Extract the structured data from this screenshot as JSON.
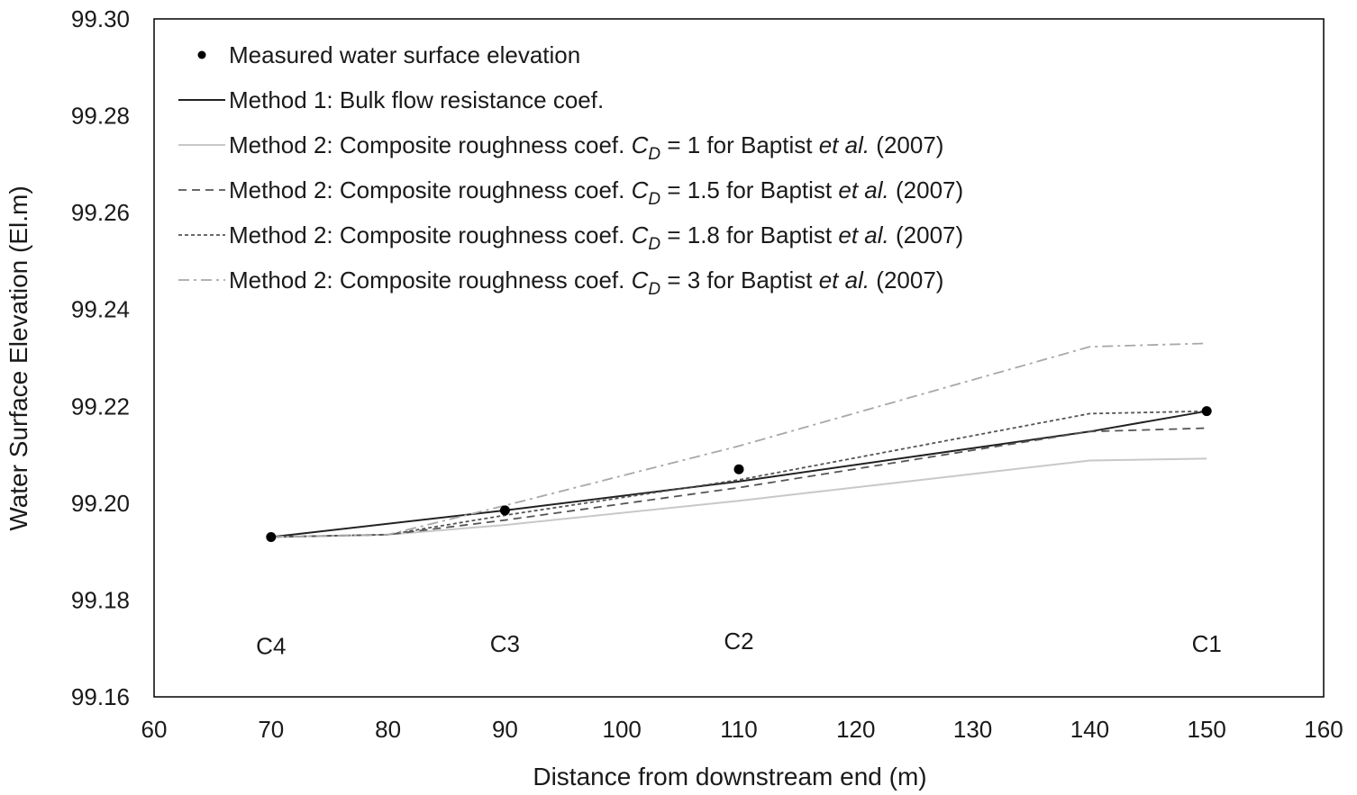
{
  "chart_data": {
    "type": "line",
    "xlabel": "Distance from downstream end (m)",
    "ylabel": "Water Surface Elevation (El.m)",
    "xlim": [
      60,
      160
    ],
    "ylim": [
      99.16,
      99.3
    ],
    "x_ticks": [
      "60",
      "70",
      "80",
      "90",
      "100",
      "110",
      "120",
      "130",
      "140",
      "150",
      "160"
    ],
    "y_ticks": [
      "99.16",
      "99.18",
      "99.20",
      "99.22",
      "99.24",
      "99.26",
      "99.28",
      "99.30"
    ],
    "grid": false,
    "legend_position": "top-left",
    "measured": {
      "name": "Measured water surface elevation",
      "points": [
        {
          "x": 70,
          "y": 99.193
        },
        {
          "x": 90,
          "y": 99.1985
        },
        {
          "x": 110,
          "y": 99.207
        },
        {
          "x": 150,
          "y": 99.219
        }
      ]
    },
    "series": [
      {
        "name": "Method 1: Bulk flow resistance coef.",
        "color": "#222222",
        "dash": "",
        "width": 2,
        "points": [
          {
            "x": 70,
            "y": 99.193
          },
          {
            "x": 90,
            "y": 99.1985
          },
          {
            "x": 110,
            "y": 99.2045
          },
          {
            "x": 140,
            "y": 99.2148
          },
          {
            "x": 150,
            "y": 99.219
          }
        ]
      },
      {
        "name": "Method 2: Composite roughness coef.  CD = 1 for Baptist et al. (2007)",
        "pre": "Method 2: Composite roughness coef.  ",
        "cd": "1",
        "color": "#c8c8c8",
        "dash": "",
        "width": 2,
        "points": [
          {
            "x": 70,
            "y": 99.193
          },
          {
            "x": 80,
            "y": 99.1935
          },
          {
            "x": 90,
            "y": 99.1955
          },
          {
            "x": 110,
            "y": 99.2005
          },
          {
            "x": 140,
            "y": 99.2088
          },
          {
            "x": 150,
            "y": 99.2092
          }
        ]
      },
      {
        "name": "Method 2: Composite roughness coef.  CD = 1.5 for Baptist et al. (2007)",
        "pre": "Method 2: Composite roughness coef.  ",
        "cd": "1.5",
        "color": "#555555",
        "dash": "9,6",
        "width": 1.8,
        "points": [
          {
            "x": 70,
            "y": 99.193
          },
          {
            "x": 80,
            "y": 99.1935
          },
          {
            "x": 90,
            "y": 99.1965
          },
          {
            "x": 110,
            "y": 99.2032
          },
          {
            "x": 140,
            "y": 99.2148
          },
          {
            "x": 150,
            "y": 99.2155
          }
        ]
      },
      {
        "name": "Method 2: Composite roughness coef.  CD = 1.8 for Baptist et al. (2007)",
        "pre": "Method 2: Composite roughness coef.  ",
        "cd": "1.8",
        "color": "#555555",
        "dash": "4,3",
        "width": 1.8,
        "points": [
          {
            "x": 70,
            "y": 99.193
          },
          {
            "x": 80,
            "y": 99.1935
          },
          {
            "x": 90,
            "y": 99.1975
          },
          {
            "x": 110,
            "y": 99.2048
          },
          {
            "x": 140,
            "y": 99.2185
          },
          {
            "x": 150,
            "y": 99.219
          }
        ]
      },
      {
        "name": "Method 2: Composite roughness coef.  CD = 3 for Baptist et al. (2007)",
        "pre": "Method 2: Composite roughness coef.  ",
        "cd": "3",
        "color": "#a8a8a8",
        "dash": "12,5,3,5",
        "width": 1.8,
        "points": [
          {
            "x": 70,
            "y": 99.193
          },
          {
            "x": 80,
            "y": 99.1935
          },
          {
            "x": 90,
            "y": 99.1995
          },
          {
            "x": 110,
            "y": 99.2118
          },
          {
            "x": 140,
            "y": 99.2323
          },
          {
            "x": 150,
            "y": 99.233
          }
        ]
      }
    ],
    "annotations": [
      {
        "text": "C4",
        "x": 70,
        "y": 99.1705
      },
      {
        "text": "C3",
        "x": 90,
        "y": 99.171
      },
      {
        "text": "C2",
        "x": 110,
        "y": 99.1715
      },
      {
        "text": "C1",
        "x": 150,
        "y": 99.171
      }
    ],
    "legend_parts": {
      "cd_main": "C",
      "cd_sub": "D",
      "eq": " = ",
      "for_text": " for Baptist ",
      "etal": "et al.",
      "year": " (2007)"
    }
  }
}
